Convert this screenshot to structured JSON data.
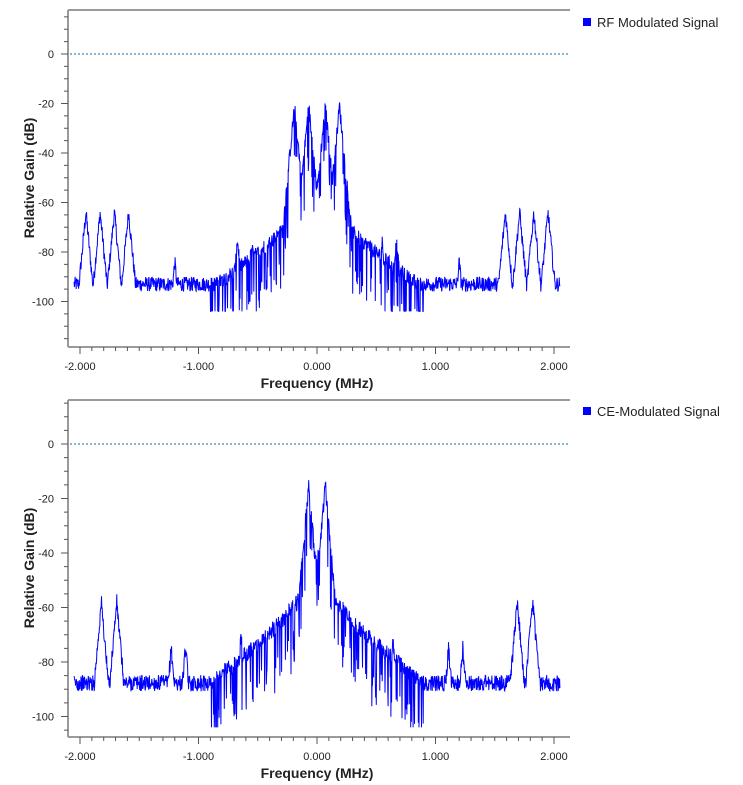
{
  "chart_data": [
    {
      "type": "line",
      "xlabel": "Frequency (MHz)",
      "ylabel": "Relative Gain (dB)",
      "x_ticks": [
        "-2.000",
        "-1.000",
        "0.000",
        "1.000",
        "2.000"
      ],
      "y_ticks": [
        "0",
        "-20",
        "-40",
        "-60",
        "-80",
        "-100"
      ],
      "xlim": [
        -2.05,
        2.05
      ],
      "ylim": [
        -118,
        17
      ],
      "reference_line_db": 0,
      "legend_placement": "top-right",
      "series": [
        {
          "name": "RF Modulated Signal",
          "color": "#0000ff",
          "noise_floor_db": -93,
          "peaks": [
            {
              "x": -0.19,
              "y": -21
            },
            {
              "x": -0.07,
              "y": -21
            },
            {
              "x": 0.07,
              "y": -21
            },
            {
              "x": 0.19,
              "y": -21
            },
            {
              "x": -0.19,
              "y": -38
            },
            {
              "x": -0.07,
              "y": -40
            },
            {
              "x": 0.07,
              "y": -40
            },
            {
              "x": 0.19,
              "y": -38
            },
            {
              "x": -0.15,
              "y": -48
            },
            {
              "x": 0.15,
              "y": -48
            },
            {
              "x": -1.95,
              "y": -64
            },
            {
              "x": -1.83,
              "y": -64
            },
            {
              "x": -1.71,
              "y": -64
            },
            {
              "x": -1.59,
              "y": -64
            },
            {
              "x": 1.59,
              "y": -64
            },
            {
              "x": 1.71,
              "y": -64
            },
            {
              "x": 1.83,
              "y": -64
            },
            {
              "x": 1.95,
              "y": -64
            },
            {
              "x": -0.55,
              "y": -76
            },
            {
              "x": -0.67,
              "y": -76
            },
            {
              "x": 0.55,
              "y": -76
            },
            {
              "x": 0.67,
              "y": -76
            },
            {
              "x": -1.2,
              "y": -84
            },
            {
              "x": 1.2,
              "y": -84
            }
          ]
        },
        {
          "name": "CE-Modulated Signal",
          "color": "#0000ff",
          "noise_floor_db": -93,
          "peaks": [
            {
              "x": -0.07,
              "y": -15
            },
            {
              "x": 0.07,
              "y": -15
            },
            {
              "x": -0.01,
              "y": -41
            },
            {
              "x": 0.01,
              "y": -41
            },
            {
              "x": -1.82,
              "y": -58
            },
            {
              "x": -1.69,
              "y": -58
            },
            {
              "x": 1.69,
              "y": -58
            },
            {
              "x": 1.82,
              "y": -58
            },
            {
              "x": -1.23,
              "y": -75
            },
            {
              "x": -1.11,
              "y": -75
            },
            {
              "x": 1.11,
              "y": -75
            },
            {
              "x": 1.23,
              "y": -75
            },
            {
              "x": -0.64,
              "y": -71
            },
            {
              "x": -0.52,
              "y": -75
            },
            {
              "x": 0.52,
              "y": -75
            },
            {
              "x": 0.64,
              "y": -71
            }
          ]
        }
      ]
    }
  ]
}
